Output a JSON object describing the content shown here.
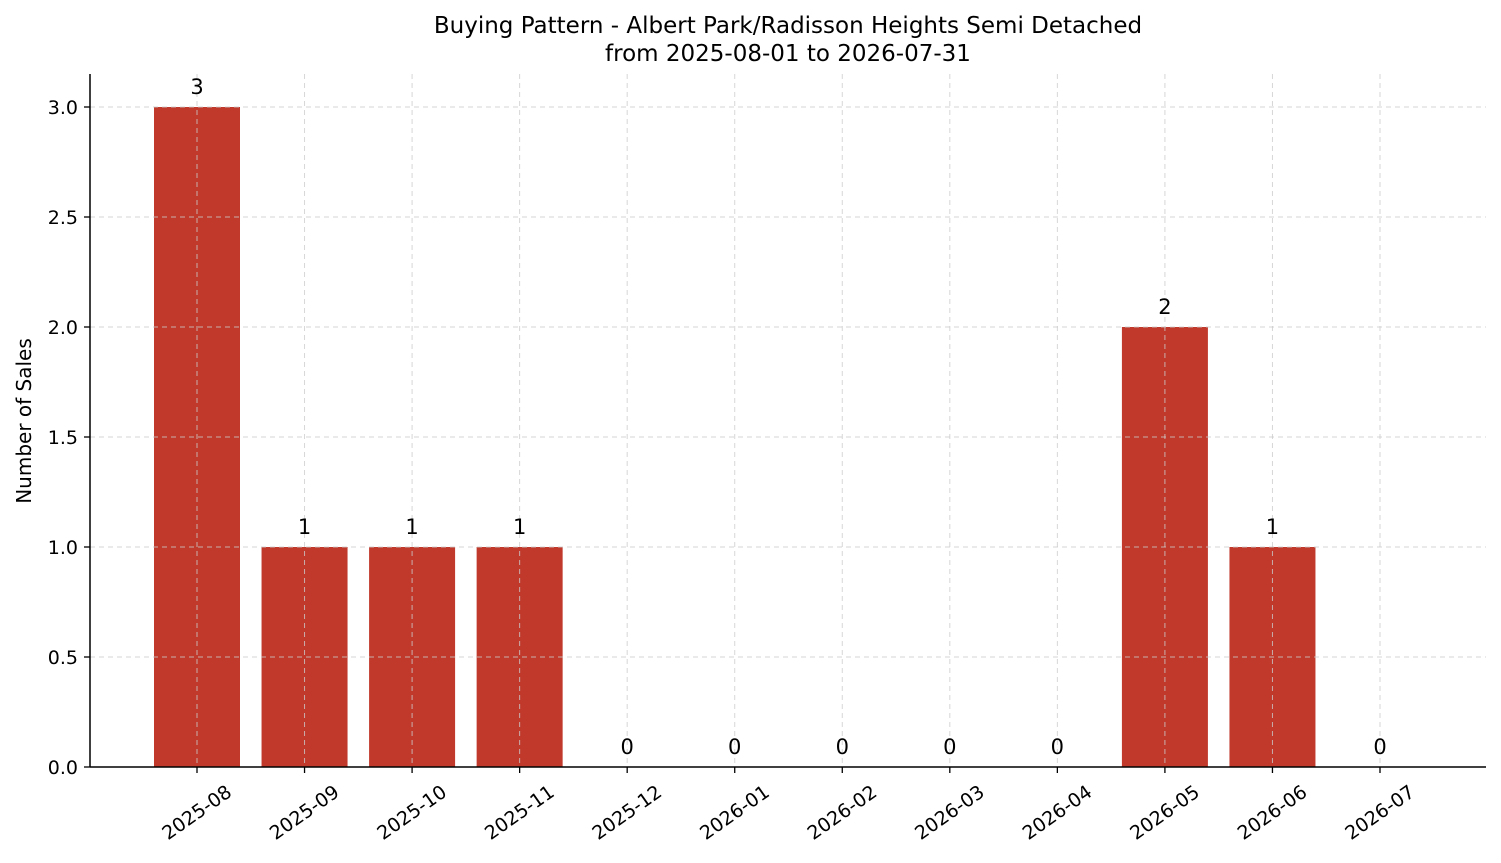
{
  "chart_data": {
    "type": "bar",
    "title": "Buying Pattern - Albert Park/Radisson Heights Semi Detached",
    "subtitle": "from 2025-08-01 to 2026-07-31",
    "xlabel": "",
    "ylabel": "Number of Sales",
    "categories": [
      "2025-08",
      "2025-09",
      "2025-10",
      "2025-11",
      "2025-12",
      "2026-01",
      "2026-02",
      "2026-03",
      "2026-04",
      "2026-05",
      "2026-06",
      "2026-07"
    ],
    "values": [
      3,
      1,
      1,
      1,
      0,
      0,
      0,
      0,
      0,
      2,
      1,
      0
    ],
    "data_labels": [
      "3",
      "1",
      "1",
      "1",
      "0",
      "0",
      "0",
      "0",
      "0",
      "2",
      "1",
      "0"
    ],
    "ylim": [
      0,
      3.15
    ],
    "yticks": [
      "0.0",
      "0.5",
      "1.0",
      "1.5",
      "2.0",
      "2.5",
      "3.0"
    ],
    "ytick_values": [
      0,
      0.5,
      1.0,
      1.5,
      2.0,
      2.5,
      3.0
    ],
    "grid": true,
    "bar_color": "#c0392b"
  }
}
